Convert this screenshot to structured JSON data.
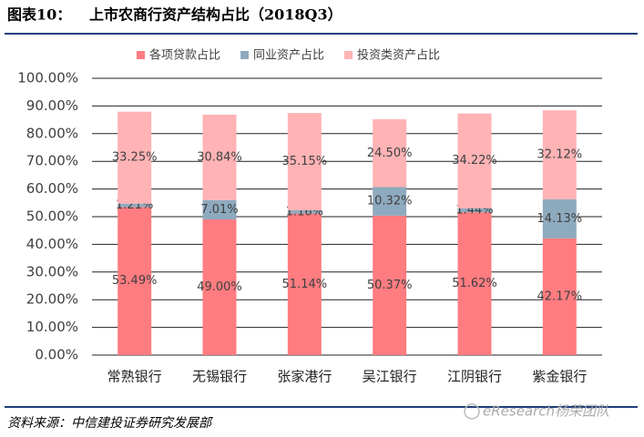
{
  "header": {
    "label": "图表10：",
    "title": "上市农商行资产结构占比（2018Q3）"
  },
  "chart_data": {
    "type": "stacked_bar",
    "categories": [
      "常熟银行",
      "无锡银行",
      "张家港行",
      "吴江银行",
      "江阴银行",
      "紫金银行"
    ],
    "series": [
      {
        "name": "各项贷款占比",
        "color": "#ff7c80",
        "values": [
          53.49,
          49.0,
          51.14,
          50.37,
          51.62,
          42.17
        ],
        "value_labels": [
          "53.49%",
          "49.00%",
          "51.14%",
          "50.37%",
          "51.62%",
          "42.17%"
        ]
      },
      {
        "name": "同业资产占比",
        "color": "#8eaabf",
        "values": [
          1.21,
          7.01,
          1.16,
          10.32,
          1.44,
          14.13
        ],
        "value_labels": [
          "1.21%",
          "7.01%",
          "1.16%",
          "10.32%",
          "1.44%",
          "14.13%"
        ]
      },
      {
        "name": "投资类资产占比",
        "color": "#ffb3b5",
        "values": [
          33.25,
          30.84,
          35.15,
          24.5,
          34.22,
          32.12
        ],
        "value_labels": [
          "33.25%",
          "30.84%",
          "35.15%",
          "24.50%",
          "34.22%",
          "32.12%"
        ]
      }
    ],
    "ylim": [
      0,
      100
    ],
    "yticks": [
      {
        "value": 0,
        "label": "0.00%"
      },
      {
        "value": 10,
        "label": "10.00%"
      },
      {
        "value": 20,
        "label": "20.00%"
      },
      {
        "value": 30,
        "label": "30.00%"
      },
      {
        "value": 40,
        "label": "40.00%"
      },
      {
        "value": 50,
        "label": "50.00%"
      },
      {
        "value": 60,
        "label": "60.00%"
      },
      {
        "value": 70,
        "label": "70.00%"
      },
      {
        "value": 80,
        "label": "80.00%"
      },
      {
        "value": 90,
        "label": "90.00%"
      },
      {
        "value": 100,
        "label": "100.00%"
      }
    ],
    "grid": true,
    "legend": "top"
  },
  "footer": {
    "source": "资料来源：中信建投证券研究发展部",
    "watermark": "eResearch杨荣团队"
  }
}
